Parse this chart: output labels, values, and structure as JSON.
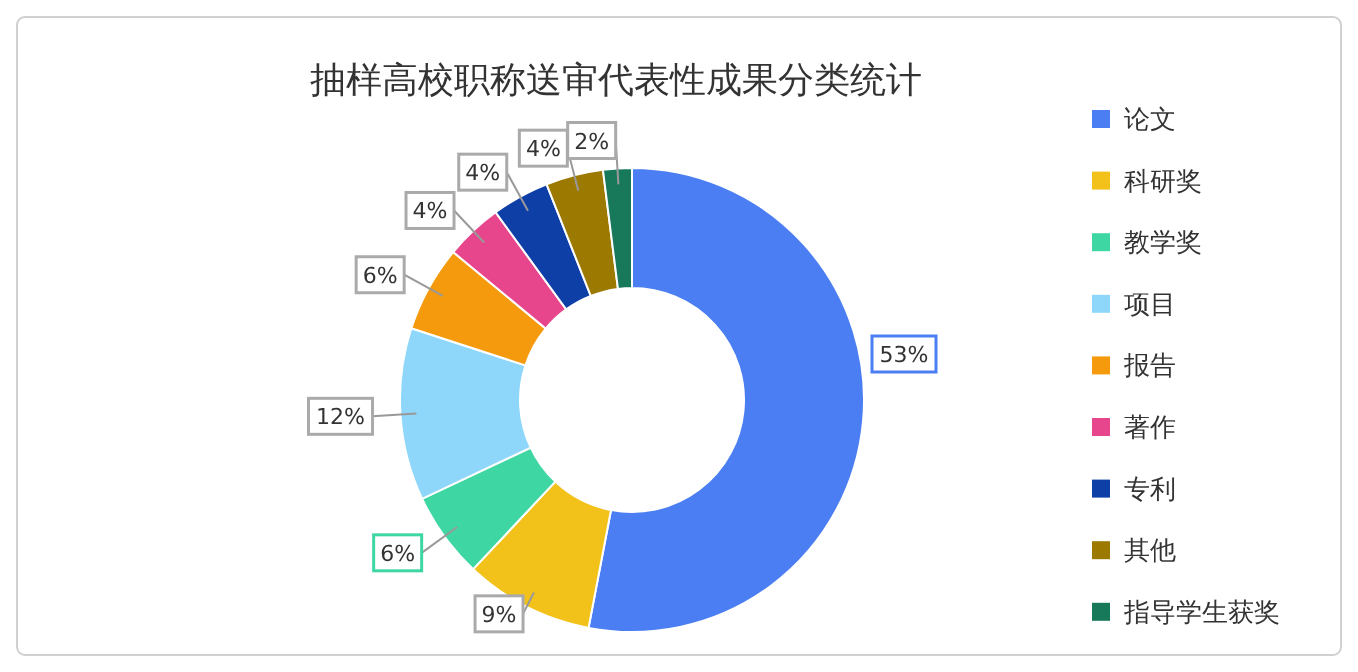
{
  "chart_data": {
    "type": "donut",
    "title": "抽样高校职称送审代表性成果分类统计",
    "categories": [
      "论文",
      "科研奖",
      "教学奖",
      "项目",
      "报告",
      "著作",
      "专利",
      "其他",
      "指导学生获奖"
    ],
    "values": [
      53,
      9,
      6,
      12,
      6,
      4,
      4,
      4,
      2
    ],
    "value_labels": [
      "53%",
      "9%",
      "6%",
      "12%",
      "6%",
      "4%",
      "4%",
      "4%",
      "2%"
    ],
    "colors": [
      "#4a7ef2",
      "#f2c21b",
      "#3ed6a2",
      "#8ed6fa",
      "#f59a0c",
      "#e8468c",
      "#0e3fa6",
      "#9c7a02",
      "#17795a"
    ],
    "legend": "right"
  }
}
